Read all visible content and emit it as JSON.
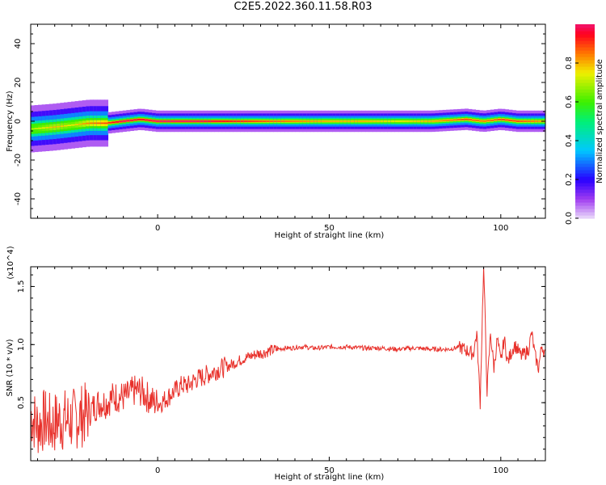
{
  "title": "C2E5.2022.360.11.58.R03",
  "chart_data": [
    {
      "type": "heatmap",
      "xlabel": "Height of straight line (km)",
      "ylabel": "Frequency (Hz)",
      "xlim": [
        -37,
        113
      ],
      "ylim": [
        -50,
        50
      ],
      "xticks": [
        0,
        50,
        100
      ],
      "yticks": [
        -40,
        -20,
        0,
        20,
        40
      ],
      "colorbar": {
        "label": "Normalized spectral amplitude",
        "range": [
          0,
          1
        ],
        "ticks": [
          "0.0",
          "0.2",
          "0.4",
          "0.6",
          "0.8"
        ]
      },
      "ridge": {
        "x": [
          -37,
          -30,
          -25,
          -20,
          -15,
          -10,
          -5,
          0,
          10,
          20,
          30,
          40,
          50,
          60,
          70,
          80,
          90,
          95,
          100,
          105,
          110,
          113
        ],
        "center_hz": [
          -4,
          -3,
          -2,
          -1,
          -1,
          0,
          1,
          0,
          0,
          0,
          0,
          0,
          0,
          0,
          0,
          0,
          1,
          0,
          1,
          0,
          0,
          0
        ],
        "peak_amplitude": [
          0.7,
          0.8,
          0.75,
          0.85,
          0.9,
          1.0,
          0.95,
          1.0,
          1.0,
          0.95,
          0.9,
          0.85,
          0.8,
          0.8,
          0.75,
          0.8,
          0.9,
          0.85,
          0.9,
          0.9,
          0.85,
          0.8
        ]
      }
    },
    {
      "type": "line",
      "xlabel": "Height of straight line (km)",
      "ylabel": "SNR (10 * v/v)",
      "y_multiplier": "(x10^4)",
      "xlim": [
        -37,
        113
      ],
      "ylim": [
        0.0,
        1.67
      ],
      "xticks": [
        0,
        50,
        100
      ],
      "yticks": [
        0.5,
        1.0,
        1.5
      ],
      "series": [
        {
          "color": "#e8302a",
          "x": [
            -37,
            -35,
            -33,
            -31,
            -29,
            -27,
            -25,
            -23,
            -21,
            -19,
            -17,
            -15,
            -13,
            -11,
            -9,
            -7,
            -5,
            -3,
            -1,
            1,
            3,
            5,
            7,
            9,
            11,
            13,
            15,
            17,
            19,
            21,
            23,
            25,
            27,
            29,
            31,
            33,
            35,
            37,
            39,
            41,
            43,
            45,
            47,
            50,
            55,
            60,
            65,
            70,
            75,
            80,
            85,
            88,
            90,
            92,
            93,
            94,
            95,
            96,
            97,
            98,
            99,
            100,
            101,
            102,
            104,
            106,
            108,
            109,
            110,
            111,
            112,
            113
          ],
          "y": [
            0.4,
            0.3,
            0.35,
            0.3,
            0.35,
            0.35,
            0.35,
            0.38,
            0.4,
            0.45,
            0.5,
            0.5,
            0.55,
            0.55,
            0.55,
            0.6,
            0.6,
            0.55,
            0.5,
            0.5,
            0.55,
            0.6,
            0.65,
            0.65,
            0.7,
            0.72,
            0.75,
            0.78,
            0.8,
            0.82,
            0.85,
            0.88,
            0.9,
            0.92,
            0.93,
            0.95,
            0.96,
            0.97,
            0.97,
            0.98,
            0.98,
            0.97,
            0.97,
            0.98,
            0.98,
            0.97,
            0.97,
            0.96,
            0.97,
            0.96,
            0.96,
            0.98,
            0.95,
            0.92,
            1.1,
            0.5,
            1.7,
            0.6,
            1.1,
            0.8,
            1.05,
            0.85,
            1.05,
            0.85,
            1.0,
            0.9,
            0.95,
            1.1,
            0.9,
            0.8,
            1.0,
            0.9
          ]
        }
      ]
    }
  ]
}
